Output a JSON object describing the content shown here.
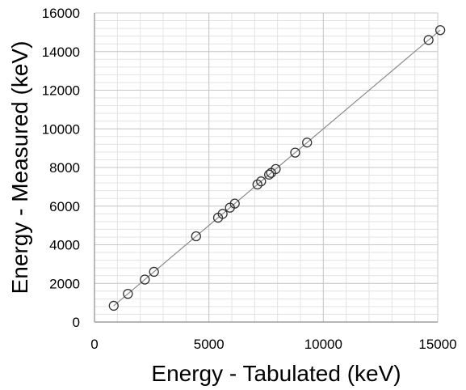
{
  "chart_data": {
    "type": "scatter",
    "title": "",
    "xlabel": "Energy - Tabulated (keV)",
    "ylabel": "Energy - Measured (keV)",
    "xlim": [
      0,
      15000
    ],
    "ylim": [
      0,
      16000
    ],
    "x_ticks": [
      "0",
      "5000",
      "10000",
      "15000"
    ],
    "y_ticks": [
      "0",
      "2000",
      "4000",
      "6000",
      "8000",
      "10000",
      "12000",
      "14000",
      "16000"
    ],
    "grid": true,
    "minor_grid": true,
    "marker": "open-circle",
    "trendline": {
      "type": "linear",
      "slope": 1.0,
      "intercept": 0
    },
    "series": [
      {
        "points": [
          {
            "x": 840,
            "y": 840
          },
          {
            "x": 1460,
            "y": 1460
          },
          {
            "x": 2200,
            "y": 2200
          },
          {
            "x": 2600,
            "y": 2600
          },
          {
            "x": 4440,
            "y": 4440
          },
          {
            "x": 5400,
            "y": 5400
          },
          {
            "x": 5600,
            "y": 5600
          },
          {
            "x": 5920,
            "y": 5920
          },
          {
            "x": 6130,
            "y": 6130
          },
          {
            "x": 7120,
            "y": 7120
          },
          {
            "x": 7280,
            "y": 7280
          },
          {
            "x": 7630,
            "y": 7630
          },
          {
            "x": 7720,
            "y": 7720
          },
          {
            "x": 7920,
            "y": 7920
          },
          {
            "x": 8770,
            "y": 8770
          },
          {
            "x": 9290,
            "y": 9290
          },
          {
            "x": 14600,
            "y": 14600
          },
          {
            "x": 15110,
            "y": 15110
          }
        ]
      }
    ]
  },
  "colors": {
    "marker_stroke": "#333333",
    "trendline": "#8c8c8c",
    "major_grid": "#c8c8c8",
    "minor_grid": "#e3e3e3",
    "axis": "#8c8c8c"
  }
}
